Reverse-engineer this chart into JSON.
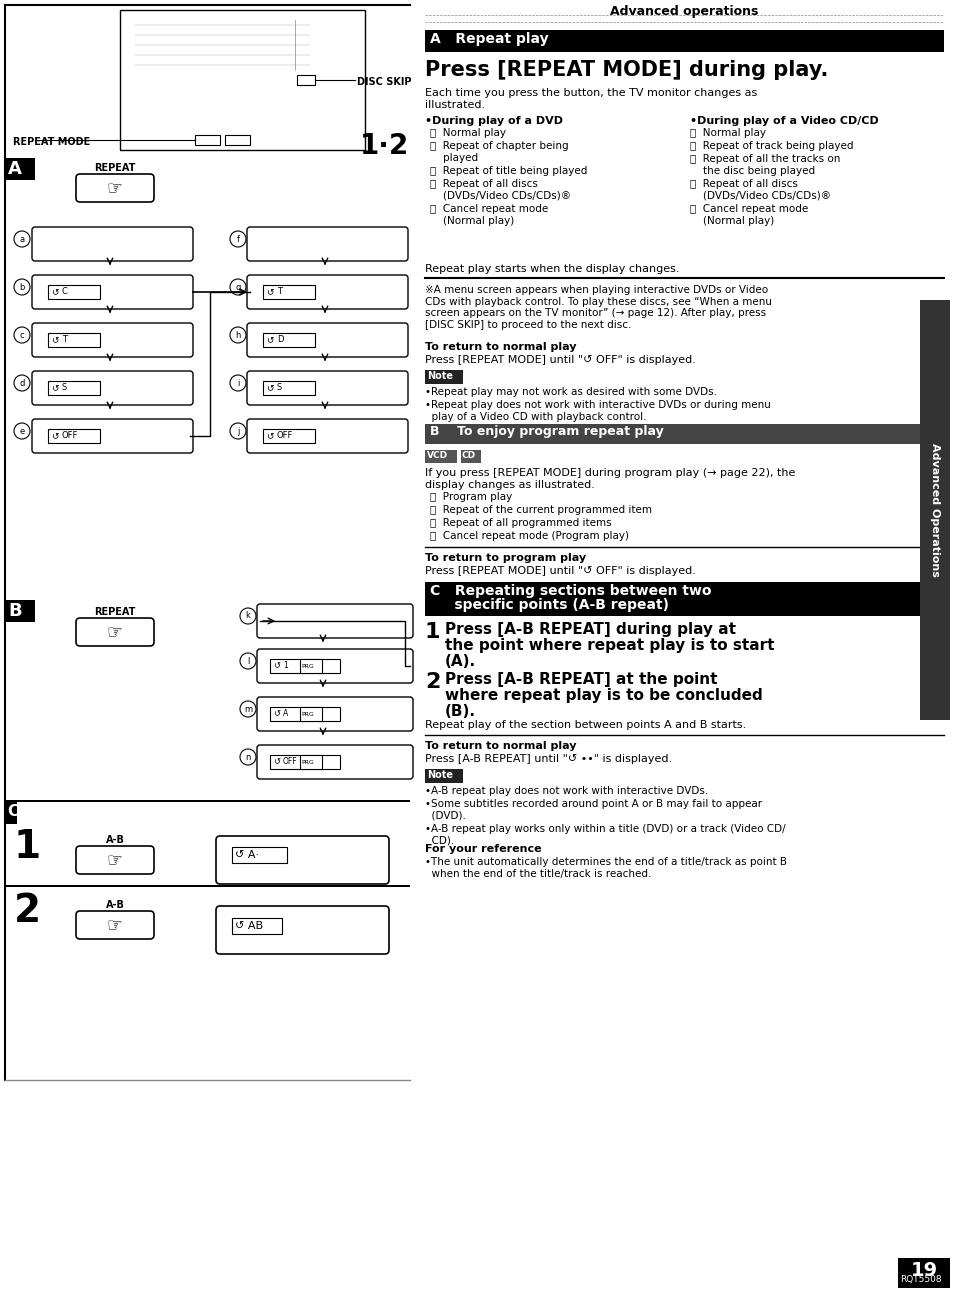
{
  "page_bg": "#ffffff",
  "title_header": "Advanced operations",
  "section_a_bar_text": "A   Repeat play",
  "section_a_header": "Press [REPEAT MODE] during play.",
  "section_a_sub": "Each time you press the button, the TV monitor changes as\nillustrated.",
  "dvd_col_title": "•During play of a DVD",
  "dvd_items": [
    "ⓐ  Normal play",
    "ⓑ  Repeat of chapter being\n    played",
    "ⓒ  Repeat of title being played",
    "ⓓ  Repeat of all discs\n    (DVDs/Video CDs/CDs)®",
    "ⓔ  Cancel repeat mode\n    (Normal play)"
  ],
  "vcd_col_title": "•During play of a Video CD/CD",
  "vcd_items": [
    "ⓕ  Normal play",
    "ⓖ  Repeat of track being played",
    "ⓗ  Repeat of all the tracks on\n    the disc being played",
    "ⓘ  Repeat of all discs\n    (DVDs/Video CDs/CDs)®",
    "ⓙ  Cancel repeat mode\n    (Normal play)"
  ],
  "repeat_starts": "Repeat play starts when the display changes.",
  "note_star": "※A menu screen appears when playing interactive DVDs or Video\nCDs with playback control. To play these discs, see “When a menu\nscreen appears on the TV monitor” (→ page 12). After play, press\n[DISC SKIP] to proceed to the next disc.",
  "return_normal_title": "To return to normal play",
  "return_normal_text": "Press [REPEAT MODE] until \"↺ OFF\" is displayed.",
  "note_label": "Note",
  "note1_items": [
    "•Repeat play may not work as desired with some DVDs.",
    "•Repeat play does not work with interactive DVDs or during menu\n  play of a Video CD with playback control."
  ],
  "section_b_bar_text": "B    To enjoy program repeat play",
  "section_b_text1": "If you press [REPEAT MODE] during program play (→ page 22), the",
  "section_b_text2": "display changes as illustrated.",
  "section_b_items": [
    "ⓚ  Program play",
    "ⓛ  Repeat of the current programmed item",
    "ⓜ  Repeat of all programmed items",
    "ⓝ  Cancel repeat mode (Program play)"
  ],
  "return_prog_title": "To return to program play",
  "return_prog_text": "Press [REPEAT MODE] until \"↺ OFF\" is displayed.",
  "section_c_bar_line1": "C   Repeating sections between two",
  "section_c_bar_line2": "     specific points (A-B repeat)",
  "step1_bold": "Press [A-B REPEAT] during play at",
  "step1_bold2": "the point where repeat play is to start",
  "step1_bold3": "(A).",
  "step2_bold": "Press [A-B REPEAT] at the point",
  "step2_bold2": "where repeat play is to be concluded",
  "step2_bold3": "(B).",
  "step2_sub": "Repeat play of the section between points A and B starts.",
  "return_normal2_title": "To return to normal play",
  "return_normal2_text": "Press [A-B REPEAT] until \"↺ ••\" is displayed.",
  "note2_items": [
    "•A-B repeat play does not work with interactive DVDs.",
    "•Some subtitles recorded around point A or B may fail to appear\n  (DVD).",
    "•A-B repeat play works only within a title (DVD) or a track (Video CD/\n  CD)."
  ],
  "ref_title": "For your reference",
  "ref_text": "•The unit automatically determines the end of a title/track as point B\n  when the end of the title/track is reached.",
  "page_num": "19",
  "page_code": "RQT5508",
  "side_label": "Advanced Operations",
  "disc_skip_label": "DISC SKIP",
  "repeat_mode_label": "REPEAT MODE",
  "num_12": "1·2"
}
